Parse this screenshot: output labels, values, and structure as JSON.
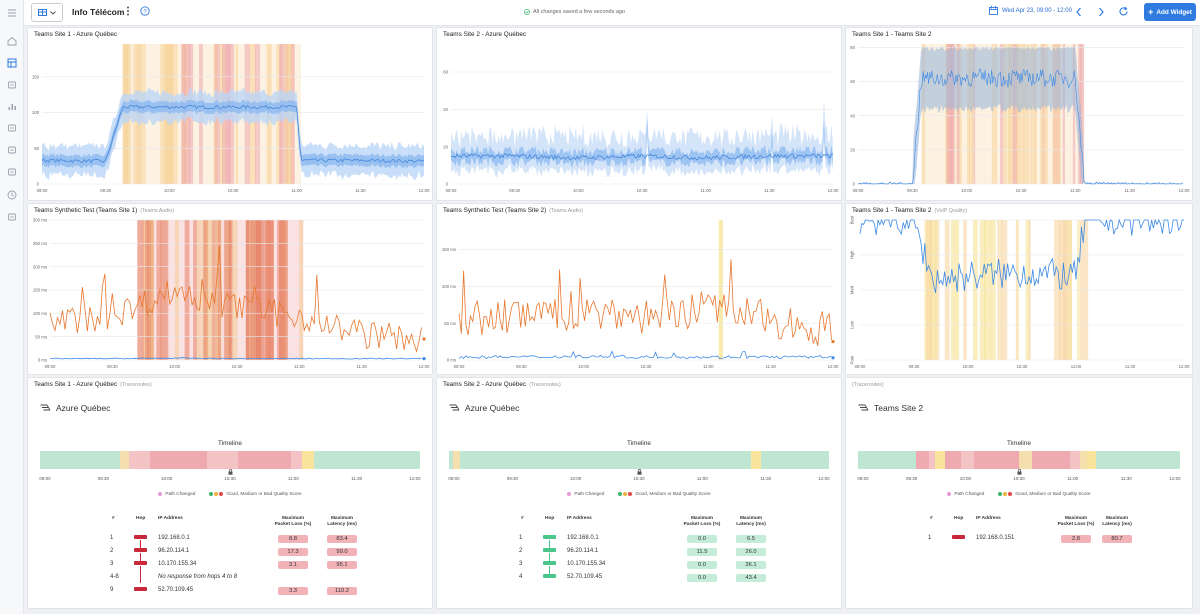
{
  "app": {
    "title": "Info Télécom",
    "saved_status": "All changes saved a few seconds ago",
    "date_range": "Wed Apr 23, 09:00 - 12:00",
    "add_widget_label": "Add Widget",
    "accent_color": "#2f7be0"
  },
  "rail_icons": [
    "menu-icon",
    "home-icon",
    "dashboard-icon",
    "routes-icon",
    "bar-chart-icon",
    "devices-icon",
    "inbox-icon",
    "gauge-icon",
    "clock-icon",
    "report-icon"
  ],
  "panels": {
    "p1": {
      "title": "Teams Site 1 - Azure Québec",
      "subtitle": ""
    },
    "p2": {
      "title": "Teams Site 2 - Azure Québec",
      "subtitle": ""
    },
    "p3": {
      "title": "Teams Site 1 - Teams Site 2",
      "subtitle": ""
    },
    "p4": {
      "title": "Teams Synthetic Test (Teams Site 1)",
      "subtitle": "(Teams Audio)"
    },
    "p5": {
      "title": "Teams Synthetic Test (Teams Site 2)",
      "subtitle": "(Teams Audio)"
    },
    "p6": {
      "title": "Teams Site 1 - Teams Site 2",
      "subtitle": "(VoIP Quality)"
    },
    "p7": {
      "title": "Teams Site 1 - Azure Québec",
      "subtitle": "(Traceroutes)"
    },
    "p8": {
      "title": "Teams Site 2 - Azure Québec",
      "subtitle": "(Traceroutes)"
    },
    "p9": {
      "title": "",
      "subtitle": "(Traceroutes)"
    }
  },
  "time_ticks": [
    "09:00",
    "09:30",
    "10:00",
    "10:30",
    "11:00",
    "11:30",
    "12:00"
  ],
  "chart_data": [
    {
      "type": "area",
      "panel": "p1",
      "title": "Teams Site 1 - Azure Québec",
      "ylim": [
        0,
        160
      ],
      "yticks": [
        "0",
        "50",
        "100",
        "150"
      ],
      "x": [
        "09:00",
        "09:30",
        "09:38",
        "10:00",
        "10:30",
        "11:00",
        "11:02",
        "11:30",
        "12:00"
      ],
      "series": [
        {
          "values": [
            27,
            26,
            88,
            88,
            88,
            88,
            27,
            27,
            26
          ]
        }
      ]
    },
    {
      "type": "area",
      "panel": "p2",
      "title": "Teams Site 2 - Azure Québec",
      "ylim": [
        0,
        75
      ],
      "yticks": [
        "0",
        "20",
        "40",
        "60"
      ],
      "x": [
        "09:00",
        "09:30",
        "10:00",
        "10:30",
        "11:00",
        "11:30",
        "12:00"
      ],
      "series": [
        {
          "values": [
            15,
            15,
            14,
            15,
            14,
            15,
            15
          ]
        }
      ]
    },
    {
      "type": "area",
      "panel": "p3",
      "title": "Teams Site 1 - Teams Site 2",
      "ylim": [
        0,
        82
      ],
      "yticks": [
        "0",
        "20",
        "40",
        "60",
        "80"
      ],
      "x": [
        "09:00",
        "09:30",
        "09:35",
        "10:00",
        "10:30",
        "11:00",
        "11:05",
        "11:30",
        "12:00"
      ],
      "series": [
        {
          "values": [
            0,
            0,
            62,
            62,
            62,
            62,
            0,
            0,
            0
          ]
        }
      ]
    },
    {
      "type": "line",
      "panel": "p4",
      "title": "Teams Synthetic Test (Teams Site 1)",
      "ylim": [
        0,
        300
      ],
      "yticks": [
        "0 ms",
        "50 ms",
        "100 ms",
        "150 ms",
        "200 ms",
        "250 ms",
        "300 ms"
      ],
      "x": [
        "09:00",
        "09:30",
        "10:00",
        "10:30",
        "11:00",
        "11:30",
        "12:00"
      ],
      "series": [
        {
          "values": [
            80,
            95,
            150,
            110,
            95,
            55,
            45
          ]
        },
        {
          "values": [
            3,
            3,
            4,
            3,
            3,
            3,
            3
          ]
        }
      ]
    },
    {
      "type": "line",
      "panel": "p5",
      "title": "Teams Synthetic Test (Teams Site 2)",
      "ylim": [
        0,
        190
      ],
      "yticks": [
        "0 ms",
        "50 ms",
        "100 ms",
        "150 ms"
      ],
      "x": [
        "09:00",
        "09:30",
        "10:00",
        "10:30",
        "11:00",
        "11:30",
        "12:00"
      ],
      "series": [
        {
          "values": [
            55,
            60,
            65,
            60,
            70,
            55,
            40
          ]
        },
        {
          "values": [
            4,
            4,
            5,
            4,
            4,
            4,
            4
          ]
        }
      ]
    },
    {
      "type": "line",
      "panel": "p6",
      "title": "Teams Site 1 - Teams Site 2",
      "ylim": [
        0,
        4
      ],
      "yticks": [
        "Poor",
        "Low",
        "Med",
        "High",
        "Best"
      ],
      "x": [
        "09:00",
        "09:30",
        "09:40",
        "10:00",
        "10:30",
        "11:00",
        "11:05",
        "11:30",
        "12:00"
      ],
      "series": [
        {
          "values": [
            4,
            4,
            2.3,
            2.4,
            2.5,
            2.4,
            4,
            4,
            4
          ]
        }
      ]
    }
  ],
  "traceroutes": [
    {
      "panel": "p7",
      "destination": "Azure Québec",
      "timeline_label": "Timeline",
      "legend_path": "Path Changed",
      "legend_quality": "Good, Medium or Bad Quality Score",
      "headers": {
        "num": "#",
        "hop": "Hop",
        "ip": "IP Address",
        "loss": "Maximum Packet Loss (%)",
        "lat": "Maximum Latency (ms)"
      },
      "rows": [
        {
          "num": "1",
          "ip": "192.168.0.1",
          "loss": "8.8",
          "lat": "83.4",
          "status": "bad"
        },
        {
          "num": "2",
          "ip": "96.20.114.1",
          "loss": "17.3",
          "lat": "99.0",
          "status": "bad"
        },
        {
          "num": "3",
          "ip": "10.170.155.34",
          "loss": "3.1",
          "lat": "95.1",
          "status": "bad"
        },
        {
          "num": "4-8",
          "ip": "No response from hops 4 to 8",
          "loss": "",
          "lat": "",
          "status": "none"
        },
        {
          "num": "9",
          "ip": "52.70.109.45",
          "loss": "3.3",
          "lat": "110.2",
          "status": "bad"
        }
      ]
    },
    {
      "panel": "p8",
      "destination": "Azure Québec",
      "timeline_label": "Timeline",
      "legend_path": "Path Changed",
      "legend_quality": "Good, Medium or Bad Quality Score",
      "headers": {
        "num": "#",
        "hop": "Hop",
        "ip": "IP Address",
        "loss": "Maximum Packet Loss (%)",
        "lat": "Maximum Latency (ms)"
      },
      "rows": [
        {
          "num": "1",
          "ip": "192.168.0.1",
          "loss": "0.0",
          "lat": "6.5",
          "status": "good"
        },
        {
          "num": "2",
          "ip": "96.20.114.1",
          "loss": "11.5",
          "lat": "26.0",
          "status": "good"
        },
        {
          "num": "3",
          "ip": "10.170.155.34",
          "loss": "0.0",
          "lat": "36.1",
          "status": "good"
        },
        {
          "num": "4",
          "ip": "52.70.109.45",
          "loss": "0.0",
          "lat": "43.4",
          "status": "good"
        }
      ]
    },
    {
      "panel": "p9",
      "destination": "Teams Site 2",
      "timeline_label": "Timeline",
      "legend_path": "Path Changed",
      "legend_quality": "Good, Medium or Bad Quality Score",
      "headers": {
        "num": "#",
        "hop": "Hop",
        "ip": "IP Address",
        "loss": "Maximum Packet Loss (%)",
        "lat": "Maximum Latency (ms)"
      },
      "rows": [
        {
          "num": "1",
          "ip": "192.168.0.151",
          "loss": "2.8",
          "lat": "80.7",
          "status": "bad"
        }
      ]
    }
  ],
  "colors": {
    "good": "#bfe6d3",
    "medium": "#f6dfae",
    "bad": "#eeaab0",
    "series_blue": "#3d8ae6",
    "series_orange": "#e8772e",
    "path_changed": "#e59ad6"
  }
}
